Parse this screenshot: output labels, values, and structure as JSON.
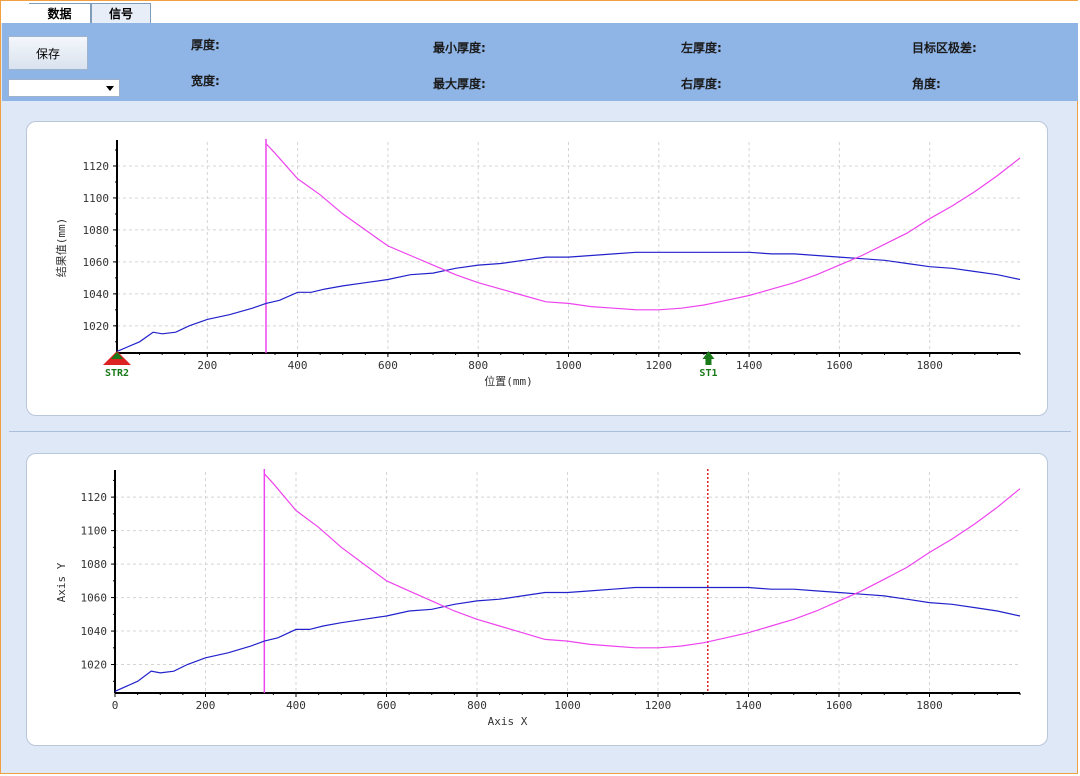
{
  "tabs": [
    {
      "label": "数据",
      "active": true
    },
    {
      "label": "信号",
      "active": false
    }
  ],
  "toolbar": {
    "save_label": "保存",
    "dropdown_value": ""
  },
  "readouts": {
    "thickness": "厚度:",
    "width": "宽度:",
    "min_thickness": "最小厚度:",
    "max_thickness": "最大厚度:",
    "left_thickness": "左厚度:",
    "right_thickness": "右厚度:",
    "target_extreme": "目标区极差:",
    "angle": "角度:"
  },
  "chart_data": [
    {
      "type": "line",
      "xlabel": "位置(mm)",
      "ylabel": "结果值(mm)",
      "xlim": [
        0,
        2000
      ],
      "ylim": [
        1003,
        1135
      ],
      "xticks": [
        200,
        400,
        600,
        800,
        1000,
        1200,
        1400,
        1600,
        1800
      ],
      "yticks": [
        1020,
        1040,
        1060,
        1080,
        1100,
        1120
      ],
      "grid": true,
      "markers": [
        {
          "label": "STR2",
          "x": 0,
          "color": "#dd2222"
        },
        {
          "label": "ST1",
          "x": 1310,
          "color": "#1a7a1a"
        }
      ],
      "vertical_lines": [
        {
          "x": 330,
          "color": "#ee44ee"
        }
      ],
      "series": [
        {
          "color": "#2222cc",
          "x": [
            0,
            50,
            80,
            100,
            130,
            160,
            200,
            250,
            300,
            330,
            360,
            400,
            430,
            460,
            500,
            550,
            600,
            650,
            700,
            750,
            800,
            850,
            900,
            950,
            1000,
            1050,
            1100,
            1150,
            1200,
            1250,
            1300,
            1350,
            1400,
            1450,
            1500,
            1550,
            1600,
            1650,
            1700,
            1750,
            1800,
            1850,
            1900,
            1950,
            2000
          ],
          "y": [
            1004,
            1010,
            1016,
            1015,
            1016,
            1020,
            1024,
            1027,
            1031,
            1034,
            1036,
            1041,
            1041,
            1043,
            1045,
            1047,
            1049,
            1052,
            1053,
            1056,
            1058,
            1059,
            1061,
            1063,
            1063,
            1064,
            1065,
            1066,
            1066,
            1066,
            1066,
            1066,
            1066,
            1065,
            1065,
            1064,
            1063,
            1062,
            1061,
            1059,
            1057,
            1056,
            1054,
            1052,
            1049
          ]
        },
        {
          "color": "#ee44ee",
          "x": [
            330,
            350,
            400,
            450,
            500,
            550,
            600,
            650,
            700,
            750,
            800,
            850,
            900,
            950,
            1000,
            1050,
            1100,
            1150,
            1200,
            1250,
            1300,
            1350,
            1400,
            1450,
            1500,
            1550,
            1600,
            1650,
            1700,
            1750,
            1800,
            1850,
            1900,
            1950,
            2000
          ],
          "y": [
            1134,
            1128,
            1112,
            1102,
            1090,
            1080,
            1070,
            1064,
            1058,
            1052,
            1047,
            1043,
            1039,
            1035,
            1034,
            1032,
            1031,
            1030,
            1030,
            1031,
            1033,
            1036,
            1039,
            1043,
            1047,
            1052,
            1058,
            1064,
            1071,
            1078,
            1087,
            1095,
            1104,
            1114,
            1125
          ]
        }
      ]
    },
    {
      "type": "line",
      "xlabel": "Axis X",
      "ylabel": "Axis Y",
      "xlim": [
        0,
        2000
      ],
      "ylim": [
        1003,
        1135
      ],
      "xticks": [
        0,
        200,
        400,
        600,
        800,
        1000,
        1200,
        1400,
        1600,
        1800
      ],
      "yticks": [
        1020,
        1040,
        1060,
        1080,
        1100,
        1120
      ],
      "grid": true,
      "markers": [],
      "vertical_lines": [
        {
          "x": 330,
          "color": "#ee44ee"
        },
        {
          "x": 1310,
          "color": "#dd2222",
          "dashed": true
        }
      ],
      "series": [
        {
          "color": "#2222cc",
          "x": [
            0,
            50,
            80,
            100,
            130,
            160,
            200,
            250,
            300,
            330,
            360,
            400,
            430,
            460,
            500,
            550,
            600,
            650,
            700,
            750,
            800,
            850,
            900,
            950,
            1000,
            1050,
            1100,
            1150,
            1200,
            1250,
            1300,
            1350,
            1400,
            1450,
            1500,
            1550,
            1600,
            1650,
            1700,
            1750,
            1800,
            1850,
            1900,
            1950,
            2000
          ],
          "y": [
            1004,
            1010,
            1016,
            1015,
            1016,
            1020,
            1024,
            1027,
            1031,
            1034,
            1036,
            1041,
            1041,
            1043,
            1045,
            1047,
            1049,
            1052,
            1053,
            1056,
            1058,
            1059,
            1061,
            1063,
            1063,
            1064,
            1065,
            1066,
            1066,
            1066,
            1066,
            1066,
            1066,
            1065,
            1065,
            1064,
            1063,
            1062,
            1061,
            1059,
            1057,
            1056,
            1054,
            1052,
            1049
          ]
        },
        {
          "color": "#ee44ee",
          "x": [
            330,
            350,
            400,
            450,
            500,
            550,
            600,
            650,
            700,
            750,
            800,
            850,
            900,
            950,
            1000,
            1050,
            1100,
            1150,
            1200,
            1250,
            1300,
            1350,
            1400,
            1450,
            1500,
            1550,
            1600,
            1650,
            1700,
            1750,
            1800,
            1850,
            1900,
            1950,
            2000
          ],
          "y": [
            1134,
            1128,
            1112,
            1102,
            1090,
            1080,
            1070,
            1064,
            1058,
            1052,
            1047,
            1043,
            1039,
            1035,
            1034,
            1032,
            1031,
            1030,
            1030,
            1031,
            1033,
            1036,
            1039,
            1043,
            1047,
            1052,
            1058,
            1064,
            1071,
            1078,
            1087,
            1095,
            1104,
            1114,
            1125
          ]
        }
      ]
    }
  ]
}
